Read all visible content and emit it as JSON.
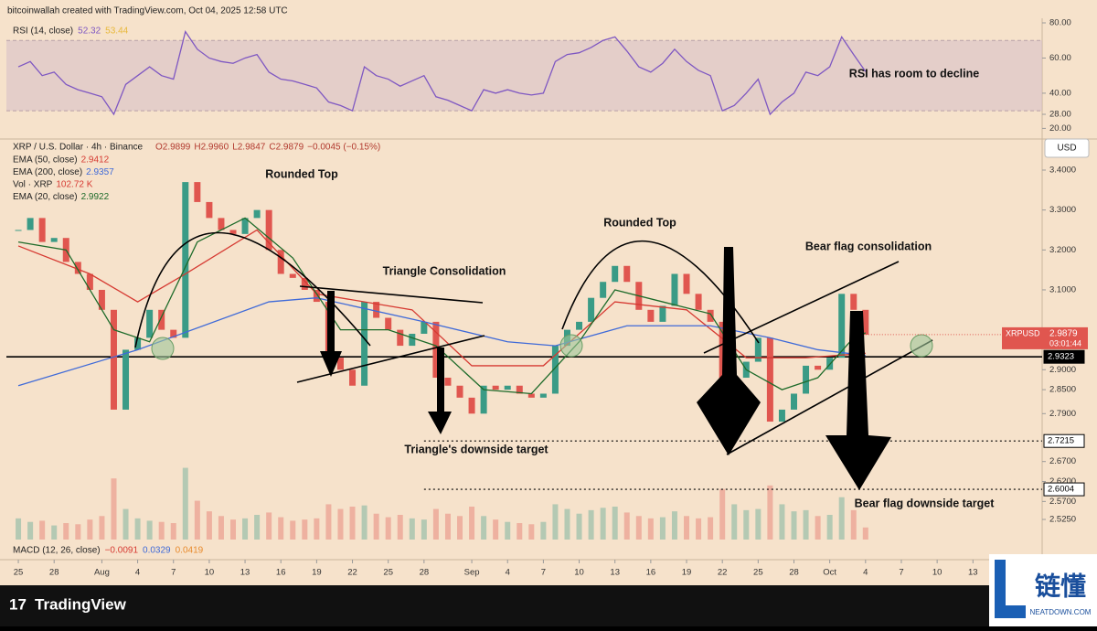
{
  "chart_data": {
    "type": "candlestick",
    "credit": "bitcoinwallah created with TradingView.com, Oct 04, 2025 12:58 UTC",
    "title": "XRP / U.S. Dollar · 4h · Binance",
    "quote": [
      "O2.9899",
      "H2.9960",
      "L2.9847",
      "C2.9879",
      "−0.0045 (−0.15%)"
    ],
    "currency": "USD",
    "up_color": "#3a9b86",
    "down_color": "#e0564f",
    "x": [
      0,
      1,
      2,
      3,
      4,
      5,
      6,
      7,
      8,
      9,
      10,
      11,
      12,
      13,
      14,
      15,
      16,
      17,
      18,
      19,
      20,
      21,
      22,
      23,
      24,
      25,
      26,
      27,
      28,
      29,
      30,
      31,
      32,
      33,
      34,
      35,
      36,
      37,
      38,
      39,
      40,
      41,
      42,
      43,
      44,
      45,
      46,
      47,
      48,
      49,
      50,
      51,
      52,
      53,
      54,
      55,
      56,
      57,
      58,
      59,
      60,
      61,
      62,
      63,
      64,
      65,
      66,
      67,
      68,
      69,
      70,
      71
    ],
    "close": [
      3.25,
      3.28,
      3.22,
      3.23,
      3.17,
      3.14,
      3.1,
      3.05,
      2.8,
      2.95,
      2.98,
      3.05,
      3.0,
      2.98,
      3.37,
      3.32,
      3.28,
      3.25,
      3.24,
      3.28,
      3.3,
      3.2,
      3.14,
      3.13,
      3.1,
      3.07,
      2.93,
      2.9,
      2.86,
      3.07,
      3.03,
      3.0,
      2.96,
      2.99,
      3.02,
      2.88,
      2.86,
      2.83,
      2.79,
      2.86,
      2.85,
      2.86,
      2.84,
      2.83,
      2.84,
      2.96,
      3.0,
      3.02,
      3.08,
      3.12,
      3.16,
      3.12,
      3.05,
      3.02,
      3.06,
      3.14,
      3.09,
      3.05,
      3.02,
      2.86,
      2.88,
      2.92,
      2.98,
      2.77,
      2.8,
      2.84,
      2.91,
      2.9,
      2.93,
      3.09,
      3.05,
      2.9879
    ],
    "xlim": [
      -1,
      85.8
    ],
    "xticks": [
      {
        "value": 0,
        "label": "25"
      },
      {
        "value": 3,
        "label": "28"
      },
      {
        "value": 7,
        "label": "Aug"
      },
      {
        "value": 10,
        "label": "4"
      },
      {
        "value": 13,
        "label": "7"
      },
      {
        "value": 16,
        "label": "10"
      },
      {
        "value": 19,
        "label": "13"
      },
      {
        "value": 22,
        "label": "16"
      },
      {
        "value": 25,
        "label": "19"
      },
      {
        "value": 28,
        "label": "22"
      },
      {
        "value": 31,
        "label": "25"
      },
      {
        "value": 34,
        "label": "28"
      },
      {
        "value": 38,
        "label": "Sep"
      },
      {
        "value": 41,
        "label": "4"
      },
      {
        "value": 44,
        "label": "7"
      },
      {
        "value": 47,
        "label": "10"
      },
      {
        "value": 50,
        "label": "13"
      },
      {
        "value": 53,
        "label": "16"
      },
      {
        "value": 56,
        "label": "19"
      },
      {
        "value": 59,
        "label": "22"
      },
      {
        "value": 62,
        "label": "25"
      },
      {
        "value": 65,
        "label": "28"
      },
      {
        "value": 68,
        "label": "Oct"
      },
      {
        "value": 71,
        "label": "4"
      },
      {
        "value": 74,
        "label": "7"
      },
      {
        "value": 77,
        "label": "10"
      },
      {
        "value": 80,
        "label": "13"
      }
    ],
    "ylim": [
      2.4746,
      3.471
    ],
    "yticks": [
      {
        "value": 3.4,
        "label": "3.4000"
      },
      {
        "value": 3.3,
        "label": "3.3000"
      },
      {
        "value": 3.2,
        "label": "3.2000"
      },
      {
        "value": 3.1,
        "label": "3.1000"
      },
      {
        "value": 2.9,
        "label": "2.9000"
      },
      {
        "value": 2.85,
        "label": "2.8500"
      },
      {
        "value": 2.79,
        "label": "2.7900"
      },
      {
        "value": 2.67,
        "label": "2.6700"
      },
      {
        "value": 2.62,
        "label": "2.6200"
      },
      {
        "value": 2.57,
        "label": "2.5700"
      },
      {
        "value": 2.525,
        "label": "2.5250"
      }
    ],
    "indicators": [
      {
        "name": "EMA (50, close)",
        "last": 2.9412,
        "color": "#d63a32",
        "x": [
          0,
          6,
          10,
          14,
          20,
          25,
          33,
          38,
          44,
          50,
          56,
          61,
          66,
          71
        ],
        "values": [
          3.21,
          3.14,
          3.07,
          3.14,
          3.25,
          3.09,
          3.05,
          2.91,
          2.91,
          3.07,
          3.05,
          2.93,
          2.93,
          2.9412
        ]
      },
      {
        "name": "EMA (200, close)",
        "last": 2.9357,
        "color": "#3f6ad8",
        "x": [
          0,
          10,
          21,
          25,
          34,
          41,
          45,
          51,
          58,
          63,
          67,
          71
        ],
        "values": [
          2.86,
          2.95,
          3.07,
          3.08,
          3.02,
          2.97,
          2.96,
          3.01,
          3.01,
          2.98,
          2.95,
          2.9357
        ]
      },
      {
        "name": "Vol · XRP",
        "last": 102.72,
        "last_label": "102.72 K",
        "color": "#d63a32",
        "ylim": [
          0,
          700
        ],
        "values": [
          180,
          150,
          160,
          120,
          140,
          130,
          170,
          200,
          520,
          260,
          180,
          160,
          150,
          140,
          610,
          330,
          240,
          200,
          170,
          180,
          210,
          230,
          190,
          160,
          170,
          180,
          300,
          260,
          280,
          290,
          220,
          190,
          210,
          180,
          170,
          260,
          220,
          200,
          280,
          200,
          170,
          150,
          140,
          130,
          150,
          300,
          260,
          220,
          250,
          270,
          280,
          230,
          200,
          180,
          190,
          240,
          200,
          180,
          190,
          430,
          300,
          250,
          260,
          460,
          300,
          240,
          250,
          200,
          210,
          360,
          250,
          102.72
        ]
      },
      {
        "name": "EMA (20, close)",
        "last": 2.9922,
        "color": "#1e6b2a",
        "x": [
          0,
          4,
          8,
          11,
          15,
          19,
          23,
          27,
          31,
          35,
          39,
          43,
          47,
          50,
          54,
          58,
          61,
          64,
          67,
          70,
          71
        ],
        "values": [
          3.22,
          3.2,
          3.0,
          2.97,
          3.22,
          3.28,
          3.18,
          3.0,
          3.0,
          2.96,
          2.85,
          2.84,
          2.97,
          3.1,
          3.07,
          3.04,
          2.9,
          2.85,
          2.88,
          2.98,
          2.9922
        ]
      }
    ],
    "levels": [
      {
        "value": 2.9323,
        "style": "solid"
      },
      {
        "value": 2.7215,
        "style": "dotted"
      },
      {
        "value": 2.6004,
        "style": "dotted"
      }
    ],
    "last_price": {
      "symbol": "XRPUSD",
      "value": 2.9879,
      "countdown": "03:01:44"
    },
    "annotations": [
      "Rounded Top",
      "Triangle Consolidation",
      "Triangle's downside target",
      "Rounded Top",
      "Bear flag consolidation",
      "Bear flag downside target",
      "RSI has room to decline"
    ],
    "rsi": {
      "title": "RSI (14, close)",
      "last": 52.32,
      "ma": 53.44,
      "color": "#7e57c2",
      "ma_color": "#e8b83a",
      "band": [
        30,
        70
      ],
      "ylim": [
        15,
        82.6
      ],
      "yticks": [
        {
          "value": 80,
          "label": "80.00"
        },
        {
          "value": 60,
          "label": "60.00"
        },
        {
          "value": 40,
          "label": "40.00"
        },
        {
          "value": 28,
          "label": "28.00"
        },
        {
          "value": 20,
          "label": "20.00"
        }
      ],
      "values": [
        55,
        58,
        50,
        52,
        45,
        42,
        40,
        38,
        28,
        45,
        50,
        55,
        50,
        48,
        75,
        65,
        60,
        58,
        57,
        60,
        62,
        52,
        48,
        47,
        45,
        43,
        35,
        33,
        30,
        55,
        50,
        48,
        44,
        47,
        50,
        38,
        36,
        33,
        30,
        42,
        40,
        42,
        40,
        39,
        40,
        58,
        62,
        63,
        66,
        70,
        72,
        64,
        55,
        52,
        57,
        65,
        58,
        53,
        50,
        30,
        33,
        40,
        48,
        28,
        35,
        40,
        52,
        50,
        55,
        72,
        62,
        52.32
      ]
    },
    "macd": {
      "title": "MACD (12, 26, close)",
      "values": [
        -0.0091,
        0.0329,
        0.0419
      ],
      "value_labels": [
        "−0.0091",
        "0.0329",
        "0.0419"
      ],
      "colors": [
        "#d63a32",
        "#3f6ad8",
        "#e88b2e"
      ]
    }
  },
  "footer": {
    "brand": "TradingView",
    "watermark": "链懂",
    "watermark_sub": "NEATDOWN.COM"
  }
}
